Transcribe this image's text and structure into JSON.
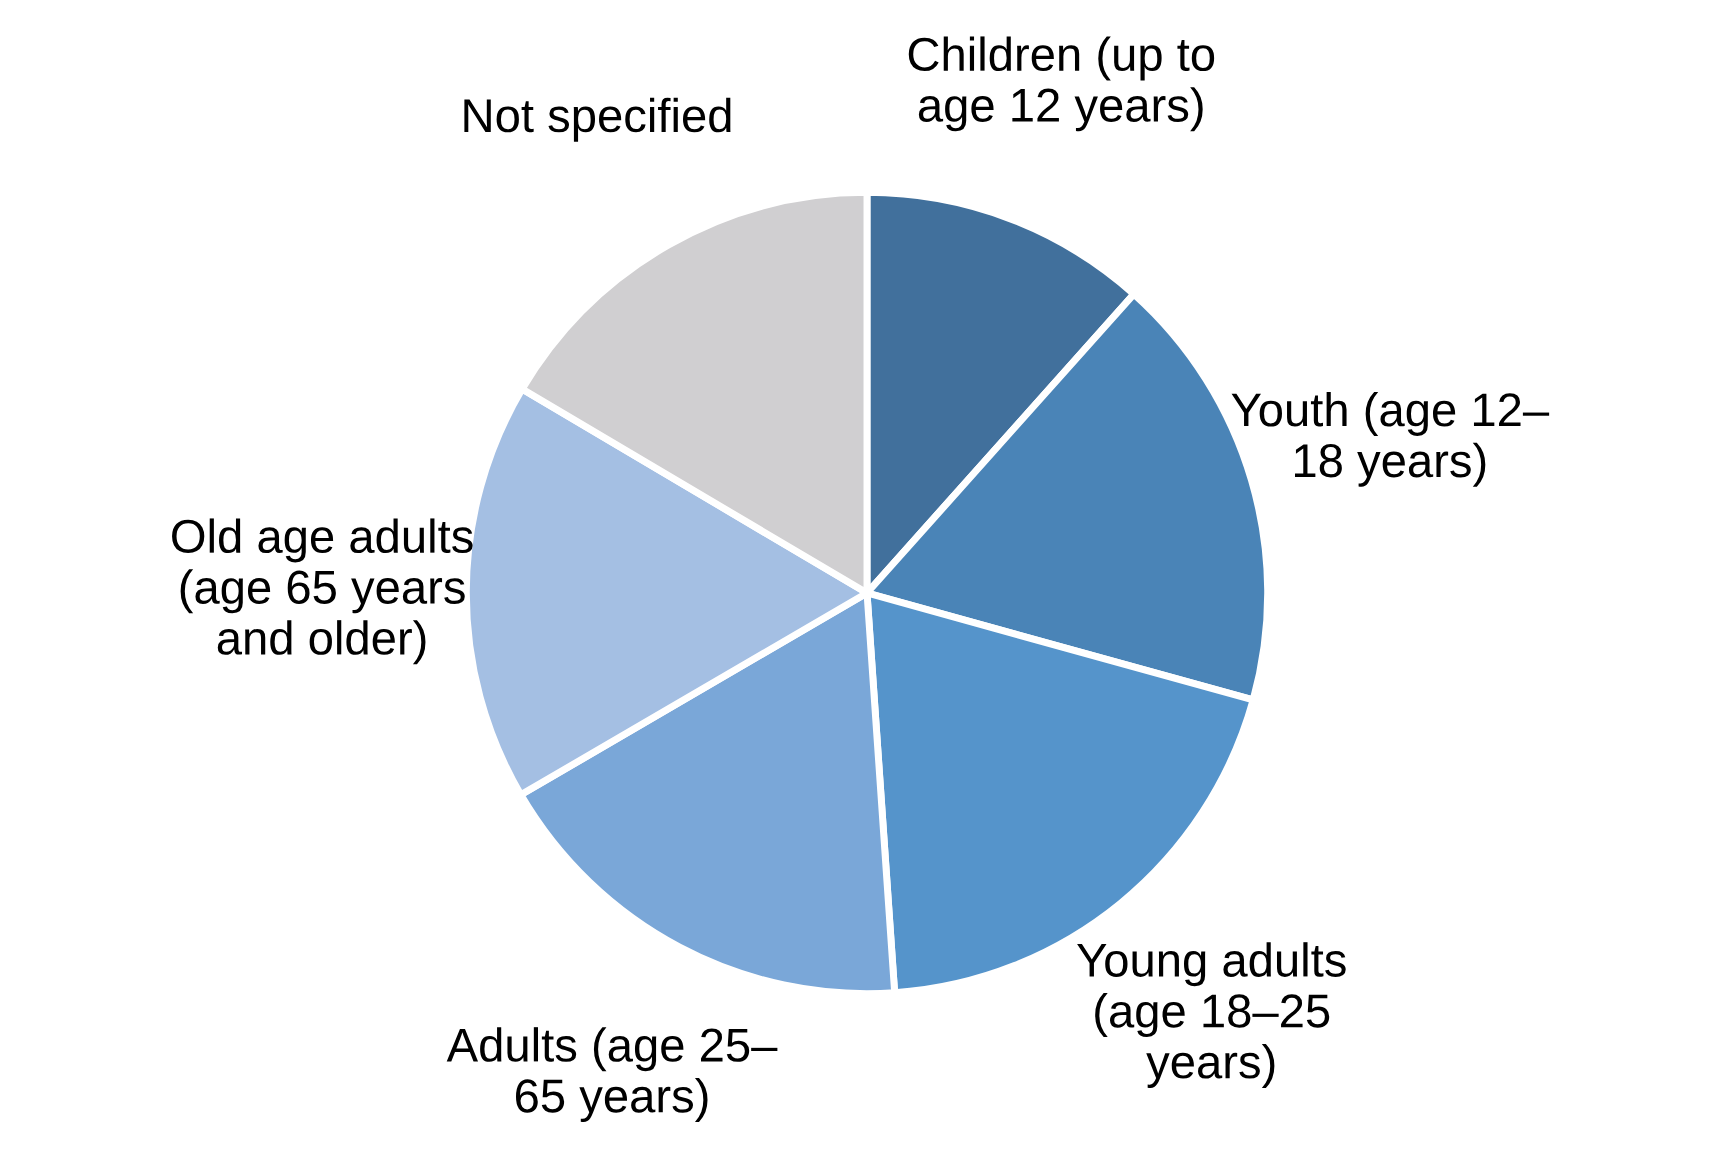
{
  "chart_data": {
    "type": "pie",
    "categories": [
      "Children (up to\nage 12 years)",
      "Youth (age 12–\n18 years)",
      "Young adults\n(age 18–25\nyears)",
      "Adults (age 25–\n65 years)",
      "Old age adults\n(age 65 years\nand older)",
      "Not specified"
    ],
    "values": [
      11.6,
      17.7,
      19.6,
      17.7,
      16.9,
      16.5
    ],
    "colors": [
      "#41709c",
      "#4a84b7",
      "#5594cb",
      "#7aa7d8",
      "#a4bfe3",
      "#d0cfd1"
    ]
  }
}
